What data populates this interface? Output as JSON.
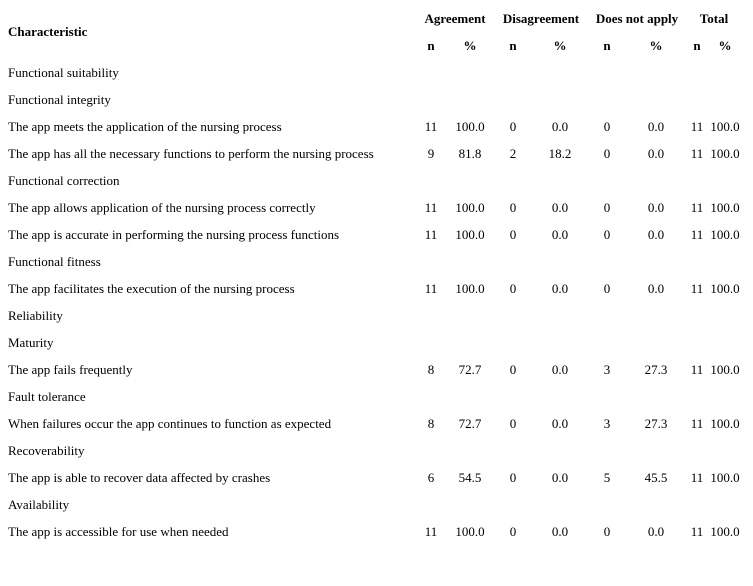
{
  "table": {
    "header": {
      "characteristic": "Characteristic",
      "groups": [
        "Agreement",
        "Disagreement",
        "Does not apply",
        "Total"
      ],
      "subheaders": [
        "n",
        "%",
        "n",
        "%",
        "n",
        "%",
        "n",
        "%"
      ]
    },
    "rows": [
      {
        "label": "Functional suitability",
        "values": [
          "",
          "",
          "",
          "",
          "",
          "",
          "",
          ""
        ]
      },
      {
        "label": "Functional integrity",
        "values": [
          "",
          "",
          "",
          "",
          "",
          "",
          "",
          ""
        ]
      },
      {
        "label": "The app meets the application of the nursing process",
        "values": [
          "11",
          "100.0",
          "0",
          "0.0",
          "0",
          "0.0",
          "11",
          "100.0"
        ]
      },
      {
        "label": "The app has all the necessary functions to perform the nursing process",
        "values": [
          "9",
          "81.8",
          "2",
          "18.2",
          "0",
          "0.0",
          "11",
          "100.0"
        ]
      },
      {
        "label": "Functional correction",
        "values": [
          "",
          "",
          "",
          "",
          "",
          "",
          "",
          ""
        ]
      },
      {
        "label": "The app allows application of the nursing process correctly",
        "values": [
          "11",
          "100.0",
          "0",
          "0.0",
          "0",
          "0.0",
          "11",
          "100.0"
        ]
      },
      {
        "label": "The app is accurate in performing the nursing process functions",
        "values": [
          "11",
          "100.0",
          "0",
          "0.0",
          "0",
          "0.0",
          "11",
          "100.0"
        ]
      },
      {
        "label": "Functional fitness",
        "values": [
          "",
          "",
          "",
          "",
          "",
          "",
          "",
          ""
        ]
      },
      {
        "label": "The app facilitates the execution of the nursing process",
        "values": [
          "11",
          "100.0",
          "0",
          "0.0",
          "0",
          "0.0",
          "11",
          "100.0"
        ]
      },
      {
        "label": "Reliability",
        "values": [
          "",
          "",
          "",
          "",
          "",
          "",
          "",
          ""
        ]
      },
      {
        "label": "Maturity",
        "values": [
          "",
          "",
          "",
          "",
          "",
          "",
          "",
          ""
        ]
      },
      {
        "label": "The app fails frequently",
        "values": [
          "8",
          "72.7",
          "0",
          "0.0",
          "3",
          "27.3",
          "11",
          "100.0"
        ]
      },
      {
        "label": "Fault tolerance",
        "values": [
          "",
          "",
          "",
          "",
          "",
          "",
          "",
          ""
        ]
      },
      {
        "label": "When failures occur the app continues to function as expected",
        "values": [
          "8",
          "72.7",
          "0",
          "0.0",
          "3",
          "27.3",
          "11",
          "100.0"
        ]
      },
      {
        "label": "Recoverability",
        "values": [
          "",
          "",
          "",
          "",
          "",
          "",
          "",
          ""
        ]
      },
      {
        "label": "The app is able to recover data affected by crashes",
        "values": [
          "6",
          "54.5",
          "0",
          "0.0",
          "5",
          "45.5",
          "11",
          "100.0"
        ]
      },
      {
        "label": "Availability",
        "values": [
          "",
          "",
          "",
          "",
          "",
          "",
          "",
          ""
        ]
      },
      {
        "label": "The app is accessible for use when needed",
        "values": [
          "11",
          "100.0",
          "0",
          "0.0",
          "0",
          "0.0",
          "11",
          "100.0"
        ]
      }
    ]
  }
}
